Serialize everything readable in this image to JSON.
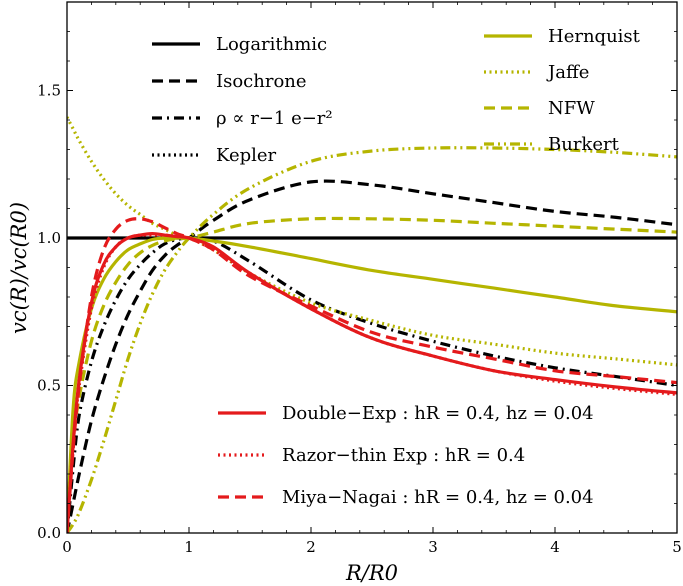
{
  "chart_data": {
    "type": "line",
    "title": "",
    "xlabel": "R/R0",
    "ylabel": "vc(R)/vc(R0)",
    "xlim": [
      0,
      5
    ],
    "ylim": [
      0,
      1.8
    ],
    "x_ticks": [
      "0",
      "1",
      "2",
      "3",
      "4",
      "5"
    ],
    "x_tick_values": [
      0,
      1,
      2,
      3,
      4,
      5
    ],
    "y_ticks": [
      "0.0",
      "0.5",
      "1.0",
      "1.5"
    ],
    "y_tick_values": [
      0.0,
      0.5,
      1.0,
      1.5
    ],
    "x": [
      0,
      0.05,
      0.1,
      0.2,
      0.3,
      0.4,
      0.5,
      0.6,
      0.7,
      0.8,
      0.9,
      1.0,
      1.2,
      1.5,
      2.0,
      2.5,
      3.0,
      3.5,
      4.0,
      4.5,
      5.0
    ],
    "colors": {
      "black": "#000000",
      "olive": "#b5b500",
      "red": "#e41a1c"
    },
    "series": [
      {
        "name": "Logarithmic",
        "color": "black",
        "dash": "solid",
        "values": [
          1.0,
          1.0,
          1.0,
          1.0,
          1.0,
          1.0,
          1.0,
          1.0,
          1.0,
          1.0,
          1.0,
          1.0,
          1.0,
          1.0,
          1.0,
          1.0,
          1.0,
          1.0,
          1.0,
          1.0,
          1.0
        ]
      },
      {
        "name": "Isochrone",
        "color": "black",
        "dash": "dashed",
        "values": [
          0.0,
          0.1,
          0.2,
          0.38,
          0.52,
          0.64,
          0.74,
          0.82,
          0.89,
          0.94,
          0.975,
          1.0,
          1.06,
          1.13,
          1.19,
          1.18,
          1.15,
          1.12,
          1.09,
          1.07,
          1.045
        ]
      },
      {
        "name": "ρ ∝ r^-1 e^(-r^2)",
        "color": "black",
        "dash": "dashdot",
        "values": [
          0.0,
          0.22,
          0.4,
          0.58,
          0.7,
          0.79,
          0.86,
          0.91,
          0.95,
          0.98,
          0.995,
          1.0,
          0.99,
          0.92,
          0.79,
          0.71,
          0.65,
          0.6,
          0.56,
          0.53,
          0.5
        ]
      },
      {
        "name": "Kepler",
        "color": "black",
        "dash": "dotted",
        "values": [
          null,
          null,
          null,
          null,
          null,
          null,
          null,
          null,
          null,
          null,
          null,
          null,
          null,
          null,
          null,
          null,
          null,
          null,
          null,
          null,
          null
        ]
      },
      {
        "name": "Hernquist",
        "color": "olive",
        "dash": "solid",
        "values": [
          0.0,
          0.42,
          0.58,
          0.76,
          0.86,
          0.92,
          0.96,
          0.98,
          0.995,
          1.0,
          1.0,
          1.0,
          0.99,
          0.97,
          0.93,
          0.89,
          0.86,
          0.83,
          0.8,
          0.77,
          0.75
        ]
      },
      {
        "name": "Jaffe",
        "color": "olive",
        "dash": "dotted",
        "values": [
          1.41,
          1.37,
          1.33,
          1.26,
          1.2,
          1.15,
          1.11,
          1.08,
          1.05,
          1.03,
          1.01,
          1.0,
          0.96,
          0.88,
          0.78,
          0.72,
          0.67,
          0.64,
          0.61,
          0.59,
          0.57
        ]
      },
      {
        "name": "NFW",
        "color": "olive",
        "dash": "dashed",
        "values": [
          0.0,
          0.3,
          0.46,
          0.65,
          0.77,
          0.85,
          0.91,
          0.95,
          0.975,
          0.99,
          0.998,
          1.0,
          1.02,
          1.05,
          1.065,
          1.065,
          1.06,
          1.05,
          1.04,
          1.03,
          1.02
        ]
      },
      {
        "name": "Burkert",
        "color": "olive",
        "dash": "dashdotdot",
        "values": [
          0.0,
          0.03,
          0.07,
          0.18,
          0.31,
          0.45,
          0.59,
          0.71,
          0.81,
          0.89,
          0.95,
          1.0,
          1.08,
          1.17,
          1.26,
          1.295,
          1.305,
          1.305,
          1.3,
          1.29,
          1.275
        ]
      },
      {
        "name": "Double−Exp : h_R = 0.4, h_z = 0.04",
        "color": "red",
        "dash": "solid",
        "values": [
          0.0,
          0.3,
          0.52,
          0.78,
          0.91,
          0.97,
          1.0,
          1.01,
          1.015,
          1.01,
          1.005,
          1.0,
          0.97,
          0.88,
          0.76,
          0.66,
          0.6,
          0.55,
          0.52,
          0.495,
          0.475
        ]
      },
      {
        "name": "Razor−thin Exp : h_R = 0.4",
        "color": "red",
        "dash": "dotted",
        "values": [
          0.0,
          0.3,
          0.5,
          0.76,
          0.9,
          0.97,
          1.0,
          1.01,
          1.01,
          1.01,
          1.005,
          1.0,
          0.96,
          0.88,
          0.76,
          0.66,
          0.6,
          0.55,
          0.515,
          0.49,
          0.47
        ]
      },
      {
        "name": "Miya−Nagai : h_R = 0.4, h_z = 0.04",
        "color": "red",
        "dash": "dashed",
        "values": [
          0.0,
          0.28,
          0.5,
          0.8,
          0.96,
          1.03,
          1.06,
          1.065,
          1.055,
          1.035,
          1.015,
          1.0,
          0.96,
          0.87,
          0.77,
          0.68,
          0.63,
          0.59,
          0.55,
          0.53,
          0.51
        ]
      }
    ],
    "legend_upper_left": [
      {
        "label": "Logarithmic"
      },
      {
        "label": "Isochrone"
      },
      {
        "label": "ρ ∝ r−1 e−r²"
      },
      {
        "label": "Kepler"
      }
    ],
    "legend_upper_right": [
      {
        "label": "Hernquist"
      },
      {
        "label": "Jaffe"
      },
      {
        "label": "NFW"
      },
      {
        "label": "Burkert"
      }
    ],
    "legend_lower_right": [
      {
        "label": "Double−Exp : hR = 0.4, hz = 0.04"
      },
      {
        "label": "Razor−thin Exp : hR = 0.4"
      },
      {
        "label": "Miya−Nagai : hR = 0.4, hz = 0.04"
      }
    ],
    "xlabel_display": "R/R0",
    "ylabel_display": "vc(R)/vc(R0)"
  }
}
